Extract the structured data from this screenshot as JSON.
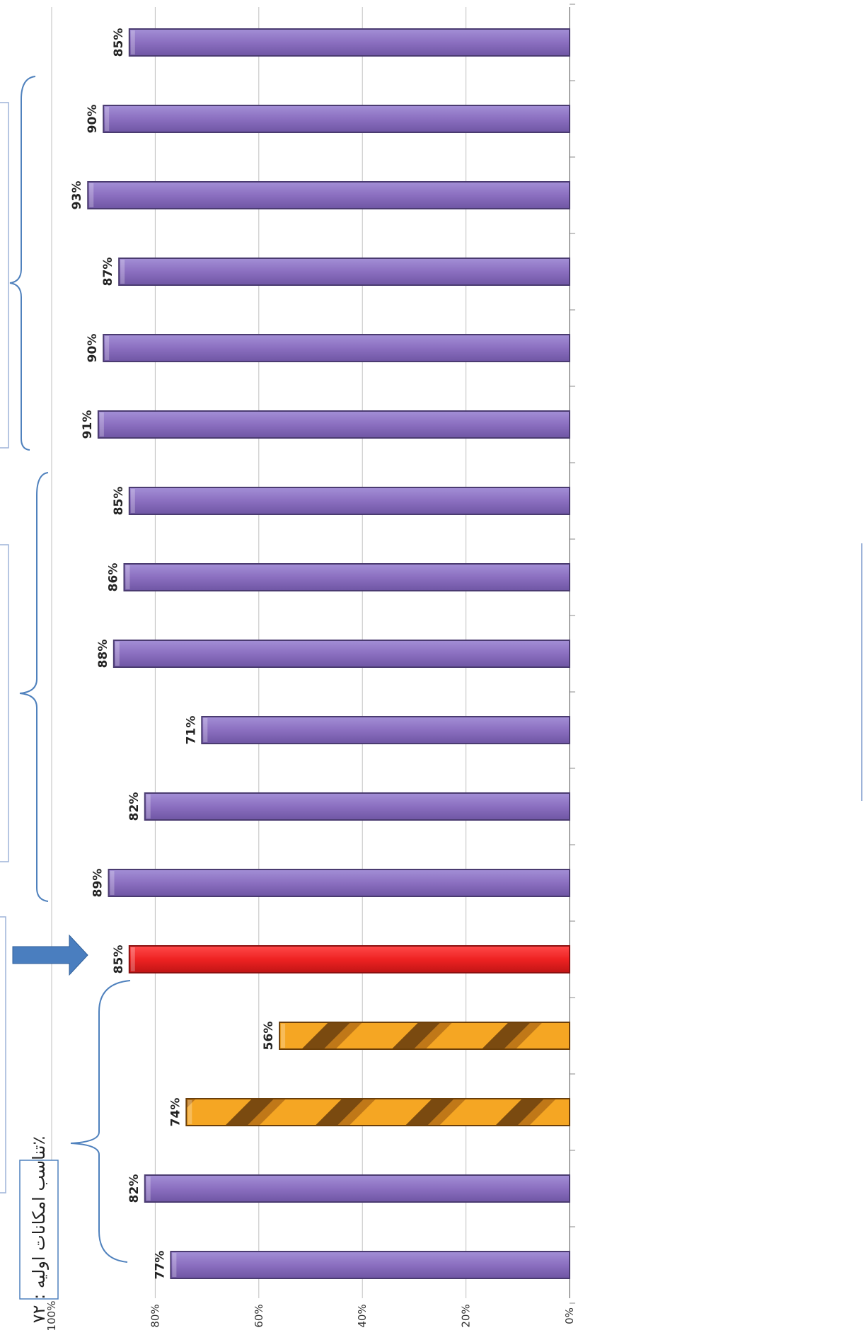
{
  "chart_data": {
    "type": "bar",
    "orientation": "horizontal-rotated",
    "title": "",
    "xlabel": "",
    "ylabel": "",
    "ylim": [
      0,
      100
    ],
    "ticks": [
      "0%",
      "20%",
      "40%",
      "60%",
      "80%",
      "100%"
    ],
    "grid": true,
    "categories": [
      "",
      "",
      "",
      "",
      "",
      "",
      "",
      "",
      "",
      "",
      "",
      "",
      "",
      "",
      "",
      "",
      ""
    ],
    "values": [
      85,
      90,
      93,
      87,
      90,
      91,
      85,
      86,
      88,
      71,
      82,
      89,
      85,
      56,
      74,
      82,
      77
    ],
    "data_labels": [
      "85%",
      "90%",
      "93%",
      "87%",
      "90%",
      "91%",
      "85%",
      "86%",
      "88%",
      "71%",
      "82%",
      "89%",
      "85%",
      "56%",
      "74%",
      "82%",
      "77%"
    ],
    "bar_styles": [
      "normal",
      "normal",
      "normal",
      "normal",
      "normal",
      "normal",
      "normal",
      "normal",
      "normal",
      "normal",
      "normal",
      "normal",
      "highlight",
      "striped",
      "striped",
      "normal",
      "normal"
    ],
    "colors": {
      "normal": "#8b6fc0",
      "normal_border": "#4a3b70",
      "highlight": "#ee2222",
      "striped_a": "#f5a623",
      "striped_b": "#7a4a10",
      "arrow": "#4a7ebf",
      "bracket": "#4f81bd"
    },
    "annotation": {
      "text": "تناسب امکانات اولیه : ۷۲٪"
    }
  }
}
